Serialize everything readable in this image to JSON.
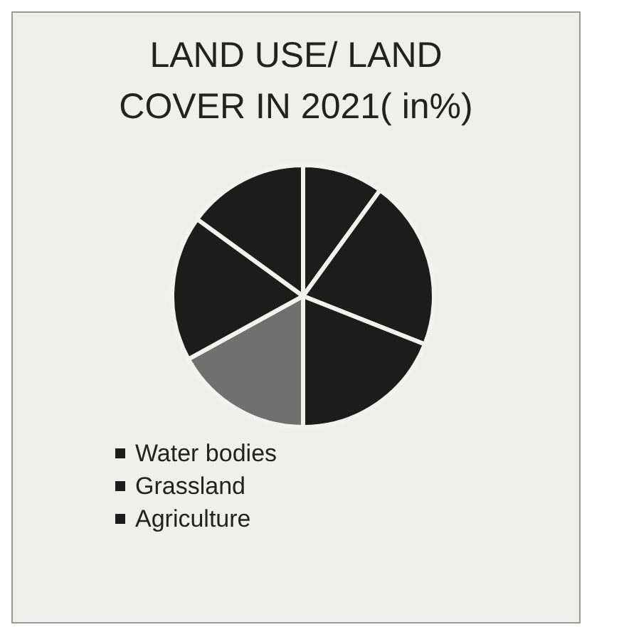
{
  "chart_data": {
    "type": "pie",
    "title": "LAND USE/ LAND COVER IN 2021( in%)",
    "categories": [
      "Water bodies",
      "Grassland",
      "Agriculture",
      null,
      null,
      null
    ],
    "values": [
      10,
      21,
      19,
      17,
      18,
      15
    ],
    "colors": [
      "#1c1c1c",
      "#1c1c1c",
      "#1c1c1c",
      "#707070",
      "#1c1c1c",
      "#1c1c1c"
    ],
    "legend": "bottom"
  }
}
